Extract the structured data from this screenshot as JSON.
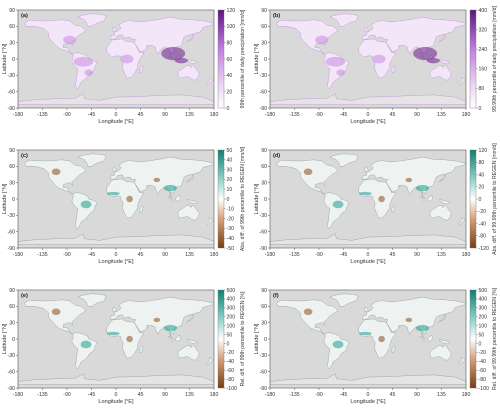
{
  "figure": {
    "x_axis_label": "Longitude [°E]",
    "y_axis_label": "Latitude [°N]",
    "x_ticks": [
      "-180",
      "-135",
      "-90",
      "-45",
      "0",
      "45",
      "90",
      "135",
      "180"
    ],
    "y_ticks": [
      "90",
      "60",
      "30",
      "0",
      "-30",
      "-60",
      "-90"
    ],
    "panels": [
      {
        "label": "(a)",
        "colorbar_label": "99th percentile of daily precipitation [mm/d]",
        "colorbar_ticks": [
          "120",
          "100",
          "80",
          "60",
          "40",
          "20",
          "0"
        ],
        "palette": "purple"
      },
      {
        "label": "(b)",
        "colorbar_label": "99.99th percentile of daily precipitation [mm/d]",
        "colorbar_ticks": [
          "400",
          "320",
          "240",
          "160",
          "80",
          "0"
        ],
        "palette": "purple"
      },
      {
        "label": "(c)",
        "colorbar_label": "Abs. diff. of 99th percentile to REGEN [mm/d]",
        "colorbar_ticks": [
          "50",
          "40",
          "30",
          "20",
          "10",
          "0",
          "-10",
          "-20",
          "-30",
          "-40",
          "-50"
        ],
        "palette": "diverging"
      },
      {
        "label": "(d)",
        "colorbar_label": "Abs. diff. of 99.99th percentile to REGEN [mm/d]",
        "colorbar_ticks": [
          "120",
          "80",
          "40",
          "20",
          "0",
          "-20",
          "-40",
          "-80",
          "-120"
        ],
        "palette": "diverging"
      },
      {
        "label": "(e)",
        "colorbar_label": "Rel. diff. of 99th percentile to REGEN [%]",
        "colorbar_ticks": [
          "500",
          "400",
          "300",
          "200",
          "100",
          "50",
          "0",
          "-20",
          "-40",
          "-60",
          "-80",
          "-100"
        ],
        "palette": "diverging"
      },
      {
        "label": "(f)",
        "colorbar_label": "Rel. diff. of 99.99th percentile to REGEN [%]",
        "colorbar_ticks": [
          "500",
          "400",
          "300",
          "200",
          "100",
          "50",
          "0",
          "-20",
          "-40",
          "-60",
          "-80",
          "-100"
        ],
        "palette": "diverging"
      }
    ],
    "colors": {
      "ocean": "#d9d9d9",
      "purple_low": "#f3e6f8",
      "purple_mid": "#c98be0",
      "purple_high": "#6a1b8a",
      "teal": "#1a9e8f",
      "brown": "#8c4a1c",
      "diff_land": "#eef3f1"
    }
  }
}
